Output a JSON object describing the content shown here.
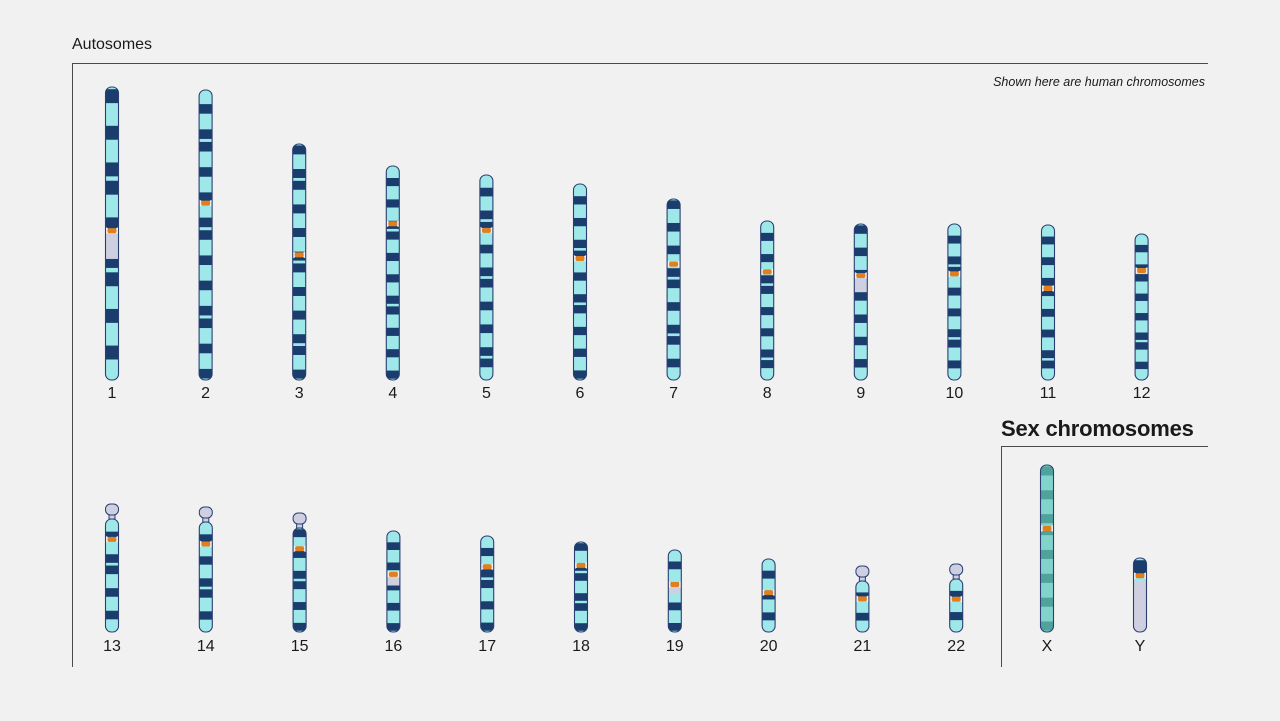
{
  "header": {
    "autosomes_title": "Autosomes",
    "sex_title": "Sex chromosomes",
    "note": "Shown here are human chromosomes"
  },
  "colors": {
    "background": "#f1f1f1",
    "light_band": "#9ee8ea",
    "dark_band": "#1b3d6e",
    "x_band": "#4fa39a",
    "x_base": "#82d3cc",
    "heterochromatin": "#cfcfe2",
    "centromere": "#e07f1c",
    "outline": "#2a3f70"
  },
  "chromosomes": [
    {
      "label": "1",
      "row": 1,
      "length": 293,
      "centromere": 0.49,
      "satellite": false,
      "type": "auto",
      "pattern": [
        1,
        0,
        1,
        0,
        1,
        1,
        0,
        1,
        0,
        1,
        1,
        0,
        1,
        0,
        1,
        0
      ]
    },
    {
      "label": "2",
      "row": 1,
      "length": 290,
      "centromere": 0.39,
      "satellite": false,
      "type": "auto",
      "pattern": [
        0,
        1,
        0,
        1,
        1,
        0,
        1,
        0,
        1,
        0,
        1,
        1,
        0,
        1,
        0,
        1,
        0,
        1,
        1,
        0,
        1,
        0,
        1
      ]
    },
    {
      "label": "3",
      "row": 1,
      "length": 236,
      "centromere": 0.47,
      "satellite": false,
      "type": "auto",
      "pattern": [
        1,
        0,
        1,
        1,
        0,
        1,
        0,
        1,
        0,
        1,
        1,
        0,
        1,
        0,
        1,
        0,
        1,
        1,
        0,
        1
      ]
    },
    {
      "label": "4",
      "row": 1,
      "length": 214,
      "centromere": 0.27,
      "satellite": false,
      "type": "auto",
      "pattern": [
        0,
        1,
        0,
        1,
        0,
        1,
        1,
        0,
        1,
        0,
        1,
        0,
        1,
        1,
        0,
        1,
        0,
        1,
        0,
        1
      ]
    },
    {
      "label": "5",
      "row": 1,
      "length": 205,
      "centromere": 0.27,
      "satellite": false,
      "type": "auto",
      "pattern": [
        0,
        1,
        0,
        1,
        1,
        0,
        1,
        0,
        1,
        1,
        0,
        1,
        0,
        1,
        0,
        1,
        1,
        0
      ]
    },
    {
      "label": "6",
      "row": 1,
      "length": 196,
      "centromere": 0.38,
      "satellite": false,
      "type": "auto",
      "pattern": [
        0,
        1,
        0,
        1,
        0,
        1,
        1,
        0,
        1,
        0,
        1,
        1,
        0,
        1,
        0,
        1,
        0,
        1
      ]
    },
    {
      "label": "7",
      "row": 1,
      "length": 181,
      "centromere": 0.36,
      "satellite": false,
      "type": "auto",
      "pattern": [
        1,
        0,
        1,
        0,
        1,
        0,
        1,
        1,
        0,
        1,
        0,
        1,
        1,
        0,
        1,
        0
      ]
    },
    {
      "label": "8",
      "row": 1,
      "length": 159,
      "centromere": 0.32,
      "satellite": false,
      "type": "auto",
      "pattern": [
        0,
        1,
        0,
        1,
        0,
        1,
        1,
        0,
        1,
        0,
        1,
        0,
        1,
        1,
        0
      ]
    },
    {
      "label": "9",
      "row": 1,
      "length": 156,
      "centromere": 0.33,
      "satellite": false,
      "type": "auto",
      "pattern": [
        1,
        0,
        1,
        0,
        1,
        0,
        1,
        0,
        1,
        0,
        1,
        0,
        1,
        0
      ]
    },
    {
      "label": "10",
      "row": 1,
      "length": 156,
      "centromere": 0.32,
      "satellite": false,
      "type": "auto",
      "pattern": [
        0,
        1,
        0,
        1,
        1,
        0,
        1,
        0,
        1,
        0,
        1,
        1,
        0,
        1,
        0
      ]
    },
    {
      "label": "11",
      "row": 1,
      "length": 155,
      "centromere": 0.41,
      "satellite": false,
      "type": "auto",
      "pattern": [
        0,
        1,
        0,
        1,
        0,
        1,
        1,
        0,
        1,
        0,
        1,
        0,
        1,
        1,
        0
      ]
    },
    {
      "label": "12",
      "row": 1,
      "length": 146,
      "centromere": 0.25,
      "satellite": false,
      "type": "auto",
      "pattern": [
        0,
        1,
        0,
        1,
        1,
        0,
        1,
        0,
        1,
        0,
        1,
        1,
        0,
        1,
        0
      ]
    },
    {
      "label": "13",
      "row": 2,
      "length": 128,
      "centromere": 0.18,
      "satellite": true,
      "type": "auto",
      "pattern": [
        0,
        1,
        0,
        1,
        1,
        0,
        1,
        0,
        1,
        0
      ]
    },
    {
      "label": "14",
      "row": 2,
      "length": 125,
      "centromere": 0.2,
      "satellite": true,
      "type": "auto",
      "pattern": [
        0,
        1,
        0,
        1,
        0,
        1,
        1,
        0,
        1,
        0
      ]
    },
    {
      "label": "15",
      "row": 2,
      "length": 119,
      "centromere": 0.2,
      "satellite": true,
      "type": "auto",
      "pattern": [
        1,
        0,
        1,
        0,
        1,
        1,
        0,
        1,
        0,
        1
      ]
    },
    {
      "label": "16",
      "row": 2,
      "length": 101,
      "centromere": 0.43,
      "satellite": false,
      "type": "auto",
      "pattern": [
        0,
        1,
        0,
        1,
        0,
        1,
        0,
        1,
        0,
        1
      ]
    },
    {
      "label": "17",
      "row": 2,
      "length": 96,
      "centromere": 0.32,
      "satellite": false,
      "type": "auto",
      "pattern": [
        0,
        1,
        0,
        1,
        1,
        0,
        1,
        0,
        1
      ]
    },
    {
      "label": "18",
      "row": 2,
      "length": 90,
      "centromere": 0.26,
      "satellite": false,
      "type": "auto",
      "pattern": [
        1,
        0,
        1,
        1,
        0,
        1,
        1,
        0,
        1
      ]
    },
    {
      "label": "19",
      "row": 2,
      "length": 82,
      "centromere": 0.42,
      "satellite": false,
      "type": "auto",
      "pattern": [
        0,
        1,
        0,
        1,
        0,
        1,
        0,
        1
      ]
    },
    {
      "label": "20",
      "row": 2,
      "length": 73,
      "centromere": 0.46,
      "satellite": false,
      "type": "auto",
      "pattern": [
        0,
        1,
        0,
        1,
        0,
        1,
        0
      ]
    },
    {
      "label": "21",
      "row": 2,
      "length": 66,
      "centromere": 0.35,
      "satellite": true,
      "type": "auto",
      "pattern": [
        0,
        1,
        0,
        1,
        0
      ]
    },
    {
      "label": "22",
      "row": 2,
      "length": 68,
      "centromere": 0.38,
      "satellite": true,
      "type": "auto",
      "pattern": [
        0,
        1,
        0,
        1,
        0
      ]
    },
    {
      "label": "X",
      "row": 2,
      "length": 167,
      "centromere": 0.38,
      "satellite": false,
      "type": "x",
      "pattern": [
        1,
        0,
        1,
        0,
        1,
        1,
        0,
        1,
        0,
        1,
        0,
        1,
        0,
        1
      ]
    },
    {
      "label": "Y",
      "row": 2,
      "length": 74,
      "centromere": 0.24,
      "satellite": false,
      "type": "y",
      "pattern": [
        1,
        0,
        1,
        0
      ]
    }
  ]
}
